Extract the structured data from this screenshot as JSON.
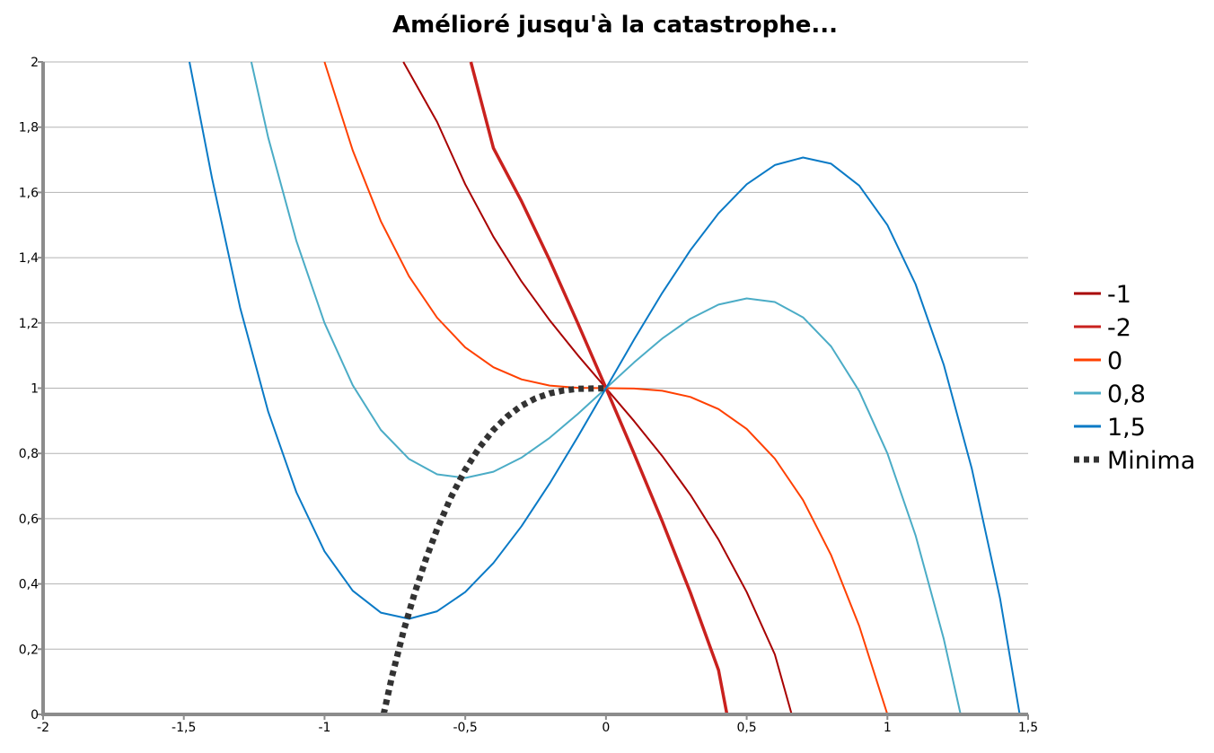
{
  "chart_data": {
    "type": "line",
    "title": "Amélioré jusqu'à la catastrophe...",
    "xlabel": "",
    "ylabel": "",
    "xlim": [
      -2,
      1.5
    ],
    "ylim": [
      0,
      2
    ],
    "x_ticks": [
      -2,
      -1.5,
      -1,
      -0.5,
      0,
      0.5,
      1,
      1.5
    ],
    "x_tick_labels": [
      "-2",
      "-1,5",
      "-1",
      "-0,5",
      "0",
      "0,5",
      "1",
      "1,5"
    ],
    "y_ticks": [
      0,
      0.2,
      0.4,
      0.6,
      0.8,
      1,
      1.2,
      1.4,
      1.6,
      1.8,
      2
    ],
    "y_tick_labels": [
      "0",
      "0,2",
      "0,4",
      "0,6",
      "0,8",
      "1",
      "1,2",
      "1,4",
      "1,6",
      "1,8",
      "2"
    ],
    "grid": true,
    "legend_position": "right",
    "series": [
      {
        "name": "-1",
        "color": "#a80000",
        "width": 2,
        "dashed": false,
        "x": [
          -0.72,
          -0.6,
          -0.5,
          -0.4,
          -0.3,
          -0.2,
          -0.1,
          0,
          0.1,
          0.2,
          0.3,
          0.4,
          0.5,
          0.6,
          0.66
        ],
        "y": [
          2.0,
          1.816,
          1.625,
          1.464,
          1.327,
          1.208,
          1.101,
          1.0,
          0.899,
          0.792,
          0.673,
          0.536,
          0.375,
          0.184,
          0.0
        ]
      },
      {
        "name": "-2",
        "color": "#c9211e",
        "width": 3.5,
        "dashed": false,
        "x": [
          -0.48,
          -0.4,
          -0.3,
          -0.2,
          -0.1,
          0,
          0.1,
          0.2,
          0.3,
          0.4,
          0.43
        ],
        "y": [
          2.0,
          1.736,
          1.573,
          1.392,
          1.199,
          1.0,
          0.799,
          0.592,
          0.373,
          0.136,
          0.0
        ]
      },
      {
        "name": "0",
        "color": "#ff4000",
        "width": 2,
        "dashed": false,
        "x": [
          -1.0,
          -0.9,
          -0.8,
          -0.7,
          -0.6,
          -0.5,
          -0.4,
          -0.3,
          -0.2,
          -0.1,
          0,
          0.1,
          0.2,
          0.3,
          0.4,
          0.5,
          0.6,
          0.7,
          0.8,
          0.9,
          1.0
        ],
        "y": [
          2.0,
          1.729,
          1.512,
          1.343,
          1.216,
          1.125,
          1.064,
          1.027,
          1.008,
          1.001,
          1.0,
          0.999,
          0.992,
          0.973,
          0.936,
          0.875,
          0.784,
          0.657,
          0.488,
          0.271,
          0.0
        ]
      },
      {
        "name": "0,8",
        "color": "#4bacc6",
        "width": 2,
        "dashed": false,
        "x": [
          -1.26,
          -1.2,
          -1.1,
          -1.0,
          -0.9,
          -0.8,
          -0.7,
          -0.6,
          -0.5,
          -0.4,
          -0.3,
          -0.2,
          -0.1,
          0,
          0.1,
          0.2,
          0.3,
          0.4,
          0.5,
          0.6,
          0.7,
          0.8,
          0.9,
          1.0,
          1.1,
          1.2,
          1.26
        ],
        "y": [
          2.0,
          1.768,
          1.451,
          1.2,
          1.009,
          0.872,
          0.783,
          0.736,
          0.725,
          0.744,
          0.787,
          0.848,
          0.921,
          1.0,
          1.079,
          1.152,
          1.213,
          1.256,
          1.275,
          1.264,
          1.217,
          1.128,
          0.991,
          0.8,
          0.549,
          0.232,
          0.0
        ]
      },
      {
        "name": "1,5",
        "color": "#0a7ac6",
        "width": 2,
        "dashed": false,
        "x": [
          -1.48,
          -1.4,
          -1.3,
          -1.2,
          -1.1,
          -1.0,
          -0.9,
          -0.8,
          -0.7,
          -0.6,
          -0.5,
          -0.4,
          -0.3,
          -0.2,
          -0.1,
          0,
          0.1,
          0.2,
          0.3,
          0.4,
          0.5,
          0.6,
          0.7,
          0.8,
          0.9,
          1.0,
          1.1,
          1.2,
          1.3,
          1.4,
          1.47
        ],
        "y": [
          2.0,
          1.644,
          1.247,
          0.928,
          0.681,
          0.5,
          0.379,
          0.312,
          0.293,
          0.316,
          0.375,
          0.464,
          0.577,
          0.708,
          0.851,
          1.0,
          1.149,
          1.292,
          1.423,
          1.536,
          1.625,
          1.684,
          1.707,
          1.688,
          1.621,
          1.5,
          1.319,
          1.072,
          0.753,
          0.356,
          0.0
        ]
      },
      {
        "name": "Minima",
        "color": "#333333",
        "width": 7,
        "dashed": true,
        "x": [
          -0.79,
          -0.76,
          -0.72,
          -0.68,
          -0.64,
          -0.6,
          -0.55,
          -0.5,
          -0.45,
          -0.4,
          -0.35,
          -0.3,
          -0.25,
          -0.2,
          -0.15,
          -0.1,
          -0.05,
          0
        ],
        "y": [
          0.0,
          0.118,
          0.253,
          0.371,
          0.476,
          0.568,
          0.667,
          0.75,
          0.818,
          0.872,
          0.914,
          0.946,
          0.969,
          0.984,
          0.993,
          0.998,
          0.999,
          1.0
        ]
      }
    ]
  }
}
